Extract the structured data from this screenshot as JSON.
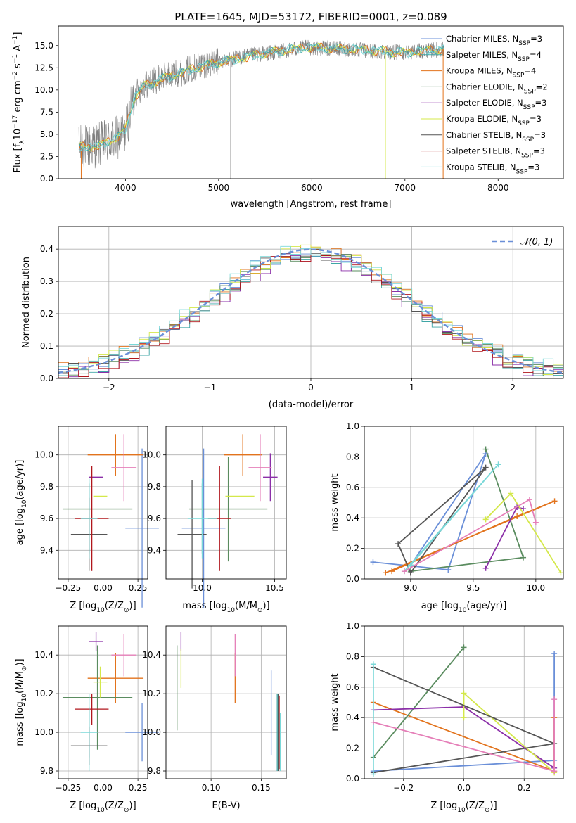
{
  "figure_title": "PLATE=1645, MJD=53172, FIBERID=0001, z=0.089",
  "colors": {
    "chabrier_miles": "#6a8fd8",
    "salpeter_miles": "#3fa6a6",
    "kroupa_miles": "#e2731c",
    "chabrier_elodie": "#5a8c5f",
    "salpeter_elodie": "#8b2fa8",
    "kroupa_elodie": "#d4e84a",
    "chabrier_stelib": "#555555",
    "salpeter_stelib": "#b0161c",
    "kroupa_stelib": "#7ad8d8",
    "pink": "#e57fb8",
    "data_gray": "#808080"
  },
  "legend": [
    {
      "key": "chabrier_miles",
      "text": "Chabrier MILES, N",
      "sub": "SSP",
      "val": "=3"
    },
    {
      "key": "salpeter_miles",
      "text": "Salpeter MILES, N",
      "sub": "SSP",
      "val": "=4"
    },
    {
      "key": "kroupa_miles",
      "text": "Kroupa MILES, N",
      "sub": "SSP",
      "val": "=4"
    },
    {
      "key": "chabrier_elodie",
      "text": "Chabrier ELODIE, N",
      "sub": "SSP",
      "val": "=2"
    },
    {
      "key": "salpeter_elodie",
      "text": "Salpeter ELODIE, N",
      "sub": "SSP",
      "val": "=3"
    },
    {
      "key": "kroupa_elodie",
      "text": "Kroupa ELODIE, N",
      "sub": "SSP",
      "val": "=3"
    },
    {
      "key": "chabrier_stelib",
      "text": "Chabrier STELIB, N",
      "sub": "SSP",
      "val": "=3"
    },
    {
      "key": "salpeter_stelib",
      "text": "Salpeter STELIB, N",
      "sub": "SSP",
      "val": "=3"
    },
    {
      "key": "kroupa_stelib",
      "text": "Kroupa STELIB, N",
      "sub": "SSP",
      "val": "=3"
    }
  ],
  "chart_data": [
    {
      "id": "spectrum",
      "type": "line",
      "xlabel": "wavelength [Angstrom, rest frame]",
      "ylabel": "Flux [f",
      "ylabel_sub": "λ",
      "ylabel_rest": "10",
      "ylabel_exp": "−17",
      "ylabel_tail": " erg cm",
      "ylabel_exp2": "−2",
      "ylabel_tail2": " s",
      "ylabel_exp3": "−1",
      "ylabel_tail3": " A",
      "ylabel_exp4": "−1",
      "ylabel_end": "]",
      "xlim": [
        3280,
        8700
      ],
      "ylim": [
        0,
        17.2
      ],
      "xticks": [
        4000,
        5000,
        6000,
        7000,
        8000
      ],
      "xtick_labels": [
        "4000",
        "5000",
        "6000",
        "7000",
        "8000"
      ],
      "yticks": [
        0,
        2.5,
        5,
        7.5,
        10,
        12.5,
        15
      ],
      "ytick_labels": [
        "0.0",
        "2.5",
        "5.0",
        "7.5",
        "10.0",
        "12.5",
        "15.0"
      ],
      "observed_envelope": {
        "wavelength": [
          3500,
          3700,
          3900,
          4000,
          4100,
          4200,
          4400,
          4600,
          4800,
          5000,
          5200,
          5400,
          5600,
          5800,
          6000,
          6200,
          6400,
          6600,
          6800,
          7000,
          7200,
          7400
        ],
        "flux": [
          3.5,
          3.8,
          4.5,
          5.5,
          9.5,
          10.5,
          11.5,
          12,
          12.8,
          13.2,
          13.6,
          14,
          14.2,
          14.6,
          14.8,
          14.7,
          14.6,
          14.4,
          14.3,
          14.2,
          14.4,
          14.6
        ]
      },
      "model_mean": {
        "wavelength": [
          3500,
          3600,
          3700,
          3800,
          3900,
          4000,
          4100,
          4200,
          4300,
          4400,
          4600,
          4800,
          5000,
          5200,
          5400,
          5600,
          5800,
          6000,
          6200,
          6400,
          6600,
          6800,
          7000,
          7200,
          7400
        ],
        "flux": [
          3.5,
          3.7,
          3.5,
          4.2,
          4.5,
          5.6,
          9.2,
          10.4,
          10.8,
          11.3,
          11.9,
          12.6,
          13.1,
          13.5,
          13.9,
          14.3,
          14.6,
          14.8,
          14.7,
          14.6,
          14.5,
          14.3,
          14.2,
          14.4,
          14.6
        ]
      },
      "sky_lines_wavelength": [
        5130,
        6790,
        7410
      ]
    },
    {
      "id": "residual_hist",
      "type": "bar",
      "xlabel": "(data-model)/error",
      "ylabel": "Normed distribution",
      "xlim": [
        -2.5,
        2.5
      ],
      "ylim": [
        0,
        0.47
      ],
      "xticks": [
        -2,
        -1,
        0,
        1,
        2
      ],
      "xtick_labels": [
        "−2",
        "−1",
        "0",
        "1",
        "2"
      ],
      "yticks": [
        0,
        0.1,
        0.2,
        0.3,
        0.4
      ],
      "ytick_labels": [
        "0.0",
        "0.1",
        "0.2",
        "0.3",
        "0.4"
      ],
      "bin_width": 0.1,
      "gaussian_label": "𝒩(0, 1)",
      "series_amplitude": [
        0.01,
        -0.005,
        0.012,
        0.0,
        -0.01,
        0.008,
        0.004,
        -0.006,
        0.014
      ]
    },
    {
      "id": "age_vs_Z",
      "type": "scatter",
      "xlabel": "Z [log",
      "xlabel_sub": "10",
      "xlabel_rest": "(Z/Z",
      "xlabel_sun": "⊙",
      "xlabel_end": ")]",
      "ylabel": "age  [log",
      "ylabel_sub": "10",
      "ylabel_rest": "(age/yr)]",
      "xlim": [
        -0.32,
        0.32
      ],
      "ylim": [
        9.22,
        10.18
      ],
      "xticks": [
        -0.25,
        0,
        0.25
      ],
      "xtick_labels": [
        "−0.25",
        "0.00",
        "0.25"
      ],
      "yticks": [
        9.4,
        9.6,
        9.8,
        10.0
      ],
      "ytick_labels": [
        "9.4",
        "9.6",
        "9.8",
        "10.0"
      ],
      "points": [
        {
          "key": "chabrier_miles",
          "x": 0.28,
          "y": 9.54,
          "xerr": 0.12,
          "yerr": 0.5
        },
        {
          "key": "salpeter_miles",
          "x": -0.1,
          "y": 9.6,
          "xerr": 0.0,
          "yerr": 0.22
        },
        {
          "key": "kroupa_miles",
          "x": 0.09,
          "y": 10.0,
          "xerr": 0.2,
          "yerr": 0.13
        },
        {
          "key": "chabrier_elodie",
          "x": -0.04,
          "y": 9.66,
          "xerr": 0.25,
          "yerr": 0.0
        },
        {
          "key": "salpeter_elodie",
          "x": -0.05,
          "y": 9.86,
          "xerr": 0.05,
          "yerr": 0.0
        },
        {
          "key": "kroupa_elodie",
          "x": -0.02,
          "y": 9.74,
          "xerr": 0.05,
          "yerr": 0.0
        },
        {
          "key": "chabrier_stelib",
          "x": -0.1,
          "y": 9.5,
          "xerr": 0.13,
          "yerr": 0.23
        },
        {
          "key": "salpeter_stelib",
          "x": -0.08,
          "y": 9.6,
          "xerr": 0.12,
          "yerr": 0.33
        },
        {
          "key": "kroupa_stelib",
          "x": -0.1,
          "y": 9.6,
          "xerr": 0.06,
          "yerr": 0.25
        },
        {
          "key": "pink",
          "x": 0.15,
          "y": 9.92,
          "xerr": 0.09,
          "yerr": 0.21
        }
      ]
    },
    {
      "id": "age_vs_mass",
      "type": "scatter",
      "xlabel": "mass [log",
      "xlabel_sub": "10",
      "xlabel_rest": "(M/M",
      "xlabel_sun": "⊙",
      "xlabel_end": ")]",
      "xlim": [
        9.75,
        10.58
      ],
      "ylim": [
        9.22,
        10.18
      ],
      "xticks": [
        10.0,
        10.5
      ],
      "xtick_labels": [
        "10.0",
        "10.5"
      ],
      "yticks": [
        9.4,
        9.6,
        9.8,
        10.0
      ],
      "ytick_labels": [
        "9.4",
        "9.6",
        "9.8",
        "10.0"
      ],
      "points": [
        {
          "key": "chabrier_miles",
          "x": 10.01,
          "y": 9.54,
          "xerr": 0.15,
          "yerr": 0.5
        },
        {
          "key": "salpeter_miles",
          "x": 10.0,
          "y": 9.6,
          "xerr": 0.0,
          "yerr": 0.22
        },
        {
          "key": "kroupa_miles",
          "x": 10.28,
          "y": 10.0,
          "xerr": 0.13,
          "yerr": 0.13
        },
        {
          "key": "chabrier_elodie",
          "x": 10.18,
          "y": 9.66,
          "xerr": 0.27,
          "yerr": 0.33
        },
        {
          "key": "salpeter_elodie",
          "x": 10.47,
          "y": 9.86,
          "xerr": 0.05,
          "yerr": 0.15
        },
        {
          "key": "kroupa_elodie",
          "x": 10.26,
          "y": 9.74,
          "xerr": 0.1,
          "yerr": 0.0
        },
        {
          "key": "chabrier_stelib",
          "x": 9.93,
          "y": 9.5,
          "xerr": 0.1,
          "yerr": 0.34
        },
        {
          "key": "salpeter_stelib",
          "x": 10.12,
          "y": 9.6,
          "xerr": 0.08,
          "yerr": 0.33
        },
        {
          "key": "kroupa_stelib",
          "x": 10.0,
          "y": 9.6,
          "xerr": 0.1,
          "yerr": 0.25
        },
        {
          "key": "pink",
          "x": 10.4,
          "y": 9.92,
          "xerr": 0.08,
          "yerr": 0.21
        }
      ]
    },
    {
      "id": "weight_vs_age",
      "type": "line",
      "xlabel": "age  [log",
      "xlabel_sub": "10",
      "xlabel_rest": "(age/yr)]",
      "ylabel": "mass weight",
      "xlim": [
        8.63,
        10.22
      ],
      "ylim": [
        0,
        1
      ],
      "xticks": [
        9.0,
        9.5,
        10.0
      ],
      "xtick_labels": [
        "9.0",
        "9.5",
        "10.0"
      ],
      "yticks": [
        0,
        0.2,
        0.4,
        0.6,
        0.8,
        1.0
      ],
      "ytick_labels": [
        "0.0",
        "0.2",
        "0.4",
        "0.6",
        "0.8",
        "1.0"
      ],
      "series": [
        {
          "key": "chabrier_miles",
          "x": [
            8.7,
            9.3,
            9.6,
            9.0
          ],
          "y": [
            0.11,
            0.06,
            0.82,
            0.09
          ]
        },
        {
          "key": "kroupa_miles",
          "x": [
            8.8,
            10.15,
            9.85,
            8.85
          ],
          "y": [
            0.04,
            0.51,
            0.41,
            0.05
          ]
        },
        {
          "key": "chabrier_elodie",
          "x": [
            9.6,
            9.9,
            9.0
          ],
          "y": [
            0.85,
            0.14,
            0.05
          ]
        },
        {
          "key": "salpeter_elodie",
          "x": [
            9.6,
            9.85,
            9.9
          ],
          "y": [
            0.07,
            0.47,
            0.46
          ]
        },
        {
          "key": "kroupa_elodie",
          "x": [
            9.6,
            9.8,
            10.2
          ],
          "y": [
            0.39,
            0.56,
            0.04
          ]
        },
        {
          "key": "chabrier_stelib",
          "x": [
            9.0,
            9.6,
            8.9,
            9.0
          ],
          "y": [
            0.04,
            0.73,
            0.23,
            0.04
          ]
        },
        {
          "key": "kroupa_stelib",
          "x": [
            8.95,
            9.7,
            9.0
          ],
          "y": [
            0.05,
            0.75,
            0.09
          ]
        },
        {
          "key": "pink",
          "x": [
            8.95,
            9.95,
            10.0
          ],
          "y": [
            0.05,
            0.52,
            0.37
          ]
        }
      ]
    },
    {
      "id": "mass_vs_Z",
      "type": "scatter",
      "xlabel": "Z [log",
      "xlabel_sub": "10",
      "xlabel_rest": "(Z/Z",
      "xlabel_sun": "⊙",
      "xlabel_end": ")]",
      "ylabel": "mass [log",
      "ylabel_sub": "10",
      "ylabel_rest": "(M/M",
      "ylabel_sun": "⊙",
      "ylabel_end": ")]",
      "xlim": [
        -0.32,
        0.32
      ],
      "ylim": [
        9.76,
        10.55
      ],
      "xticks": [
        -0.25,
        0,
        0.25
      ],
      "xtick_labels": [
        "−0.25",
        "0.00",
        "0.25"
      ],
      "yticks": [
        9.8,
        10.0,
        10.2,
        10.4
      ],
      "ytick_labels": [
        "9.8",
        "10.0",
        "10.2",
        "10.4"
      ],
      "points": [
        {
          "key": "chabrier_miles",
          "x": 0.28,
          "y": 10.0,
          "xerr": 0.12,
          "yerr": 0.15
        },
        {
          "key": "salpeter_miles",
          "x": -0.1,
          "y": 10.0,
          "xerr": 0.0,
          "yerr": 0.13
        },
        {
          "key": "kroupa_miles",
          "x": 0.09,
          "y": 10.28,
          "xerr": 0.2,
          "yerr": 0.13
        },
        {
          "key": "chabrier_elodie",
          "x": -0.04,
          "y": 10.18,
          "xerr": 0.25,
          "yerr": 0.27
        },
        {
          "key": "salpeter_elodie",
          "x": -0.05,
          "y": 10.47,
          "xerr": 0.05,
          "yerr": 0.05
        },
        {
          "key": "kroupa_elodie",
          "x": -0.02,
          "y": 10.26,
          "xerr": 0.05,
          "yerr": 0.08
        },
        {
          "key": "chabrier_stelib",
          "x": -0.1,
          "y": 9.93,
          "xerr": 0.13,
          "yerr": 0.1
        },
        {
          "key": "salpeter_stelib",
          "x": -0.08,
          "y": 10.12,
          "xerr": 0.12,
          "yerr": 0.08
        },
        {
          "key": "kroupa_stelib",
          "x": -0.1,
          "y": 10.0,
          "xerr": 0.06,
          "yerr": 0.2
        },
        {
          "key": "pink",
          "x": 0.15,
          "y": 10.4,
          "xerr": 0.09,
          "yerr": 0.11
        }
      ]
    },
    {
      "id": "mass_vs_ebv",
      "type": "scatter",
      "xlabel": "E(B-V)",
      "xlim": [
        0.055,
        0.175
      ],
      "ylim": [
        9.76,
        10.55
      ],
      "xticks": [
        0.1,
        0.15
      ],
      "xtick_labels": [
        "0.10",
        "0.15"
      ],
      "yticks": [
        9.8,
        10.0,
        10.2,
        10.4
      ],
      "ytick_labels": [
        "9.8",
        "10.0",
        "10.2",
        "10.4"
      ],
      "points": [
        {
          "key": "chabrier_miles",
          "x": 0.16,
          "y": 10.1,
          "xerr": 0.0,
          "yerr": 0.22
        },
        {
          "key": "salpeter_miles",
          "x": 0.166,
          "y": 10.0,
          "xerr": 0.0,
          "yerr": 0.2
        },
        {
          "key": "kroupa_miles",
          "x": 0.124,
          "y": 10.28,
          "xerr": 0.0,
          "yerr": 0.13
        },
        {
          "key": "chabrier_elodie",
          "x": 0.066,
          "y": 10.23,
          "xerr": 0.0,
          "yerr": 0.22
        },
        {
          "key": "salpeter_elodie",
          "x": 0.07,
          "y": 10.47,
          "xerr": 0.0,
          "yerr": 0.05
        },
        {
          "key": "kroupa_elodie",
          "x": 0.07,
          "y": 10.33,
          "xerr": 0.0,
          "yerr": 0.1
        },
        {
          "key": "chabrier_stelib",
          "x": 0.167,
          "y": 10.0,
          "xerr": 0.0,
          "yerr": 0.2
        },
        {
          "key": "salpeter_stelib",
          "x": 0.168,
          "y": 10.0,
          "xerr": 0.0,
          "yerr": 0.19
        },
        {
          "key": "kroupa_stelib",
          "x": 0.169,
          "y": 9.95,
          "xerr": 0.0,
          "yerr": 0.15
        },
        {
          "key": "pink",
          "x": 0.124,
          "y": 10.4,
          "xerr": 0.0,
          "yerr": 0.11
        }
      ]
    },
    {
      "id": "weight_vs_Z",
      "type": "line",
      "xlabel": "Z [log",
      "xlabel_sub": "10",
      "xlabel_rest": "(Z/Z",
      "xlabel_sun": "⊙",
      "xlabel_end": ")]",
      "ylabel": "mass weight",
      "xlim": [
        -0.33,
        0.33
      ],
      "ylim": [
        0,
        1
      ],
      "xticks": [
        -0.2,
        0.0,
        0.2
      ],
      "xtick_labels": [
        "−0.2",
        "0.0",
        "0.2"
      ],
      "yticks": [
        0,
        0.2,
        0.4,
        0.6,
        0.8,
        1.0
      ],
      "ytick_labels": [
        "0.0",
        "0.2",
        "0.4",
        "0.6",
        "0.8",
        "1.0"
      ],
      "series": [
        {
          "key": "chabrier_miles",
          "x": [
            -0.3,
            0.3,
            0.3
          ],
          "y": [
            0.05,
            0.12,
            0.82
          ]
        },
        {
          "key": "kroupa_miles",
          "x": [
            -0.3,
            0.3,
            0.3
          ],
          "y": [
            0.5,
            0.05,
            0.4
          ]
        },
        {
          "key": "chabrier_elodie",
          "x": [
            -0.3,
            0.0
          ],
          "y": [
            0.14,
            0.86
          ]
        },
        {
          "key": "salpeter_elodie",
          "x": [
            -0.3,
            0.0,
            0.3
          ],
          "y": [
            0.45,
            0.47,
            0.07
          ]
        },
        {
          "key": "kroupa_elodie",
          "x": [
            0.0,
            0.0,
            0.3
          ],
          "y": [
            0.4,
            0.56,
            0.04
          ]
        },
        {
          "key": "chabrier_stelib",
          "x": [
            -0.3,
            0.3,
            -0.3
          ],
          "y": [
            0.04,
            0.23,
            0.73
          ]
        },
        {
          "key": "kroupa_stelib",
          "x": [
            -0.3,
            -0.3
          ],
          "y": [
            0.03,
            0.75
          ]
        },
        {
          "key": "pink",
          "x": [
            -0.3,
            0.3,
            0.3
          ],
          "y": [
            0.37,
            0.05,
            0.52
          ]
        }
      ]
    }
  ]
}
